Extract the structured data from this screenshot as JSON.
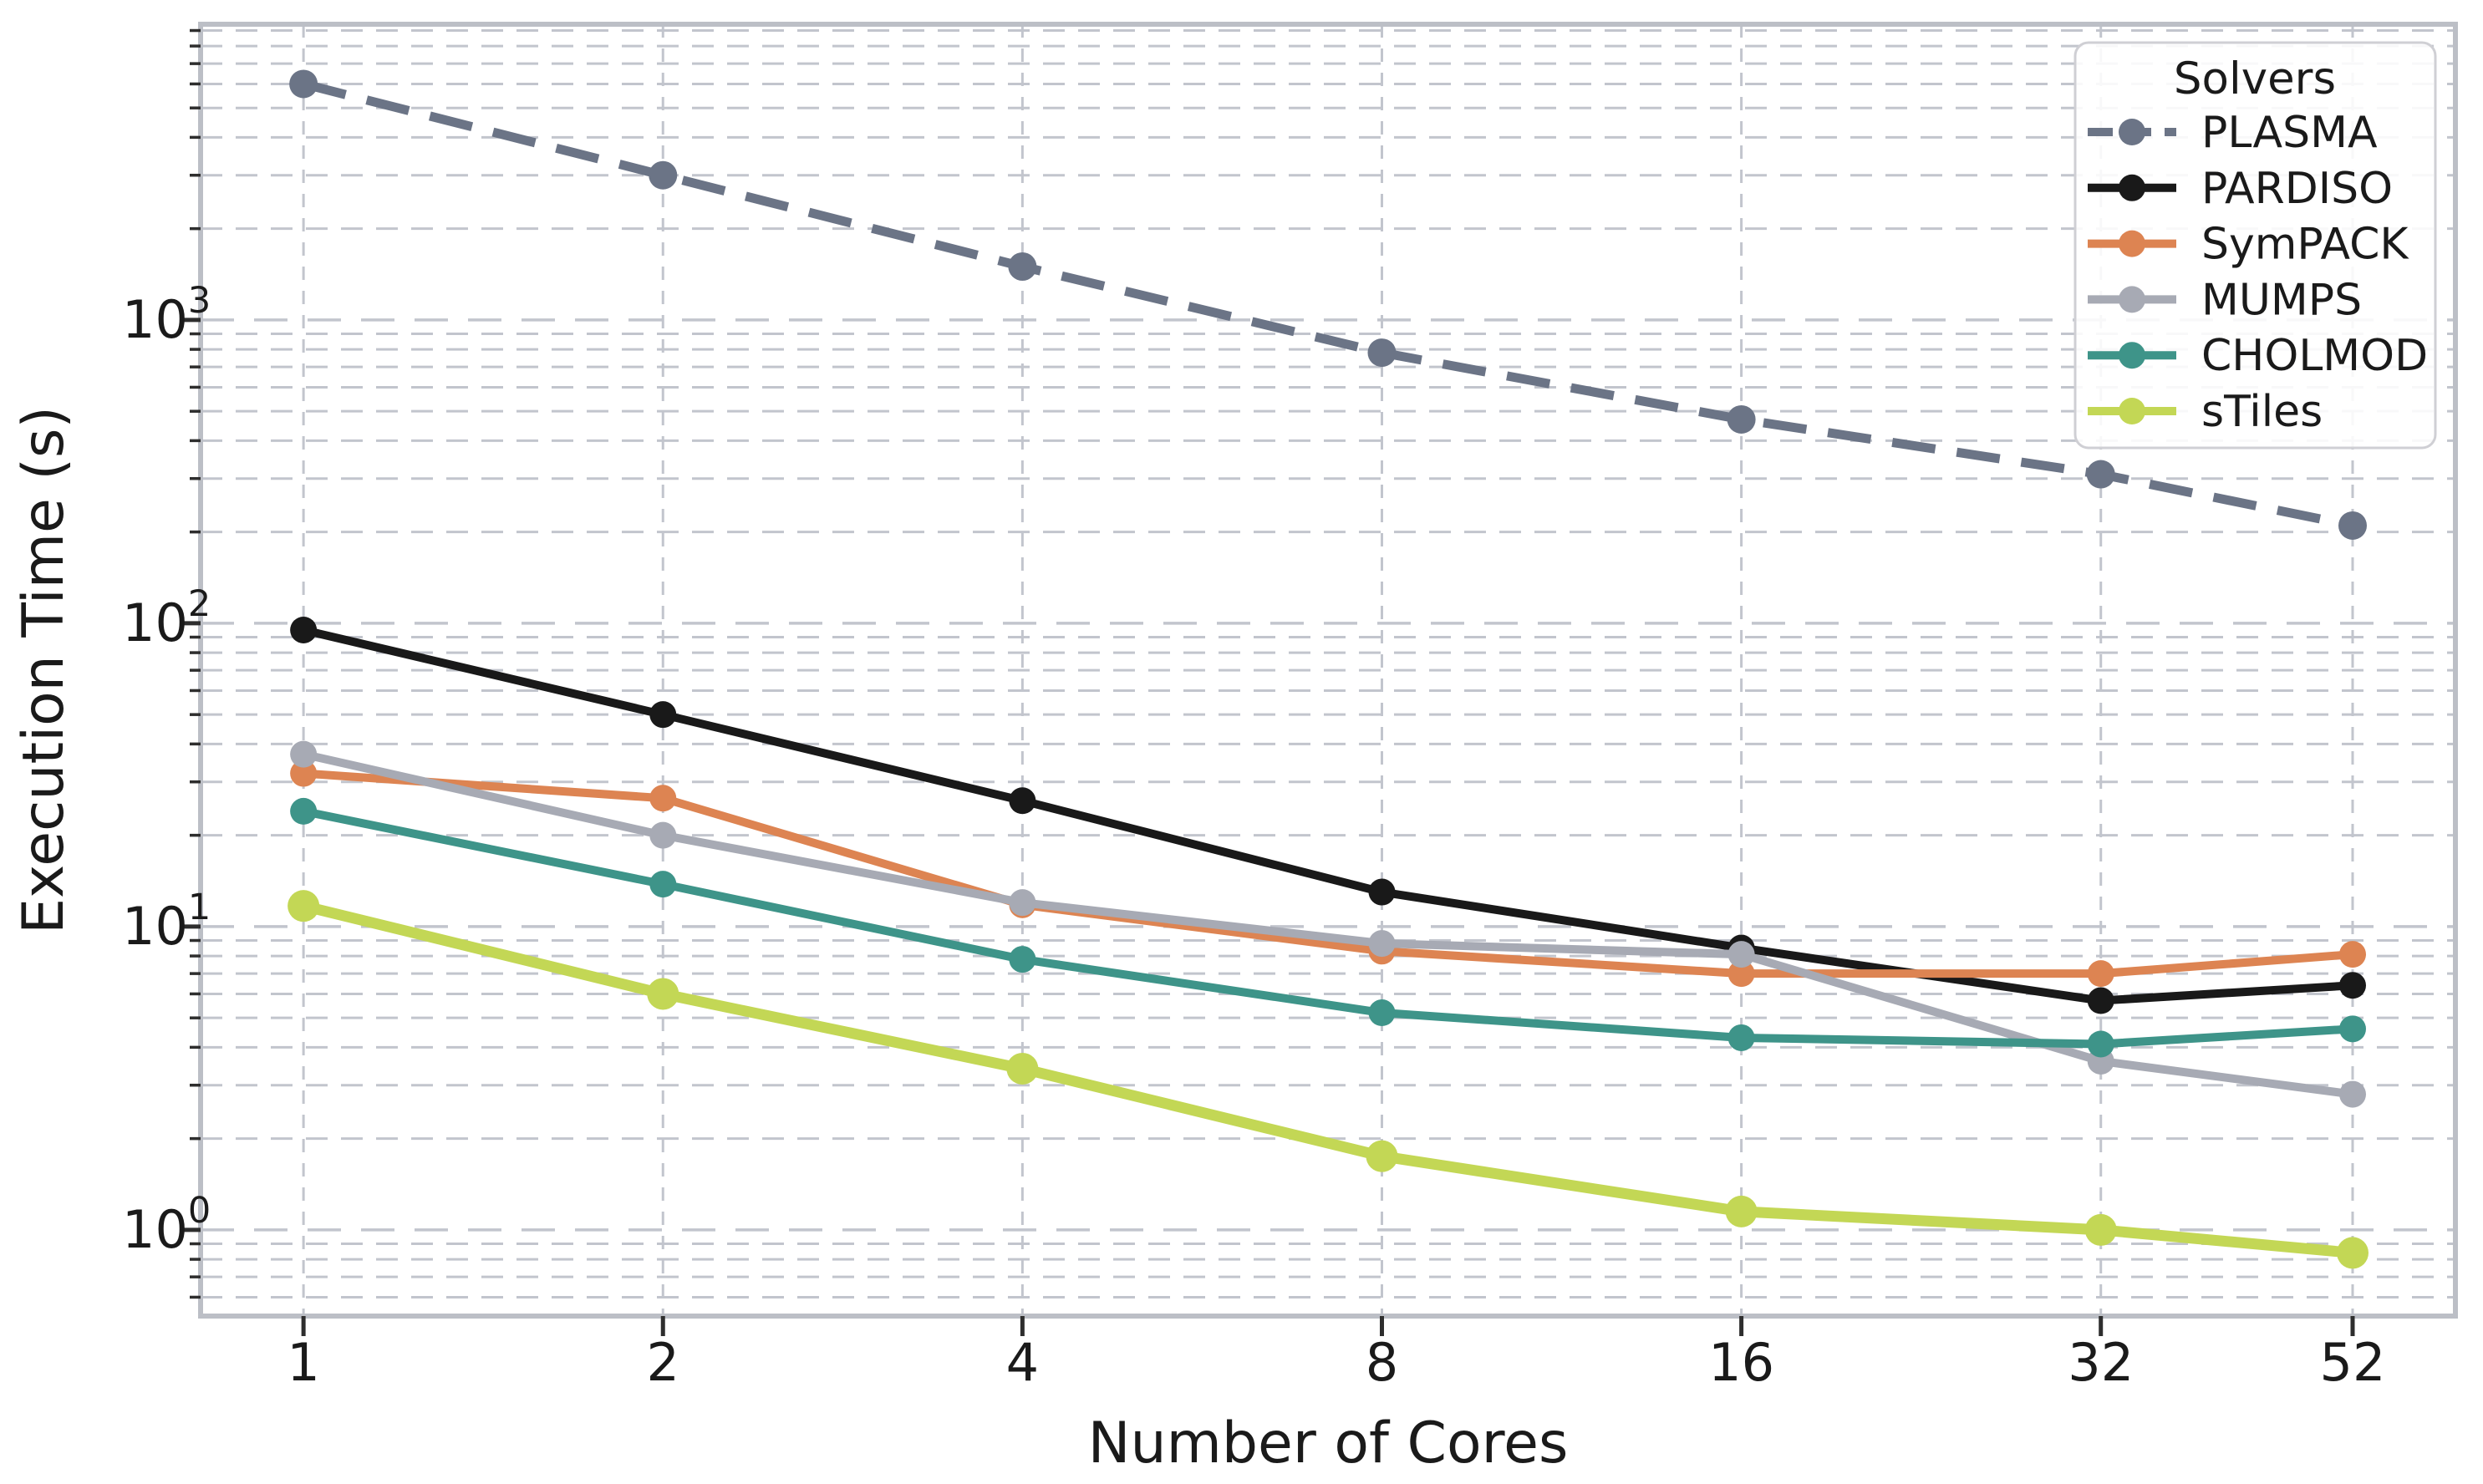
{
  "chart_data": {
    "type": "line",
    "title": "",
    "xlabel": "Number of Cores",
    "ylabel": "Execution Time (s)",
    "x_scale": "log2",
    "y_scale": "log10",
    "x": [
      1,
      2,
      4,
      8,
      16,
      32,
      52
    ],
    "x_tick_labels": [
      "1",
      "2",
      "4",
      "8",
      "16",
      "32",
      "52"
    ],
    "y_tick_values": [
      1,
      10,
      100,
      1000
    ],
    "y_tick_exponents": [
      "0",
      "1",
      "2",
      "3"
    ],
    "y_tick_base": "10",
    "xlim": [
      0.82,
      63.4
    ],
    "ylim": [
      0.52,
      9440
    ],
    "grid": true,
    "legend_position": "upper right",
    "legend_title": "Solvers",
    "series": [
      {
        "name": "PLASMA",
        "color": "#6b7486",
        "style": "dashed",
        "values": [
          6000,
          3000,
          1500,
          780,
          470,
          310,
          210
        ]
      },
      {
        "name": "PARDISO",
        "color": "#191919",
        "style": "solid",
        "values": [
          95,
          50,
          26,
          13,
          8.5,
          5.7,
          6.4
        ]
      },
      {
        "name": "SymPACK",
        "color": "#dd8452",
        "style": "solid",
        "values": [
          32,
          26.5,
          11.8,
          8.3,
          7.0,
          7.0,
          8.1
        ]
      },
      {
        "name": "MUMPS",
        "color": "#a7aab4",
        "style": "solid",
        "values": [
          37,
          20,
          12,
          8.8,
          8.1,
          3.6,
          2.8
        ]
      },
      {
        "name": "CHOLMOD",
        "color": "#3e9489",
        "style": "solid",
        "values": [
          24,
          13.8,
          7.8,
          5.2,
          4.3,
          4.1,
          4.6
        ]
      },
      {
        "name": "sTiles",
        "color": "#c3d755",
        "style": "solid",
        "values": [
          11.7,
          6.0,
          3.4,
          1.75,
          1.15,
          1.0,
          0.84
        ]
      }
    ],
    "colors": {
      "grid": "#c2c5cd",
      "spine": "#bcbfc6",
      "tick": "#2e2e2e",
      "text": "#1a1a1a",
      "legend_border": "#cfcfd4",
      "legend_bg": "#ffffff"
    }
  }
}
